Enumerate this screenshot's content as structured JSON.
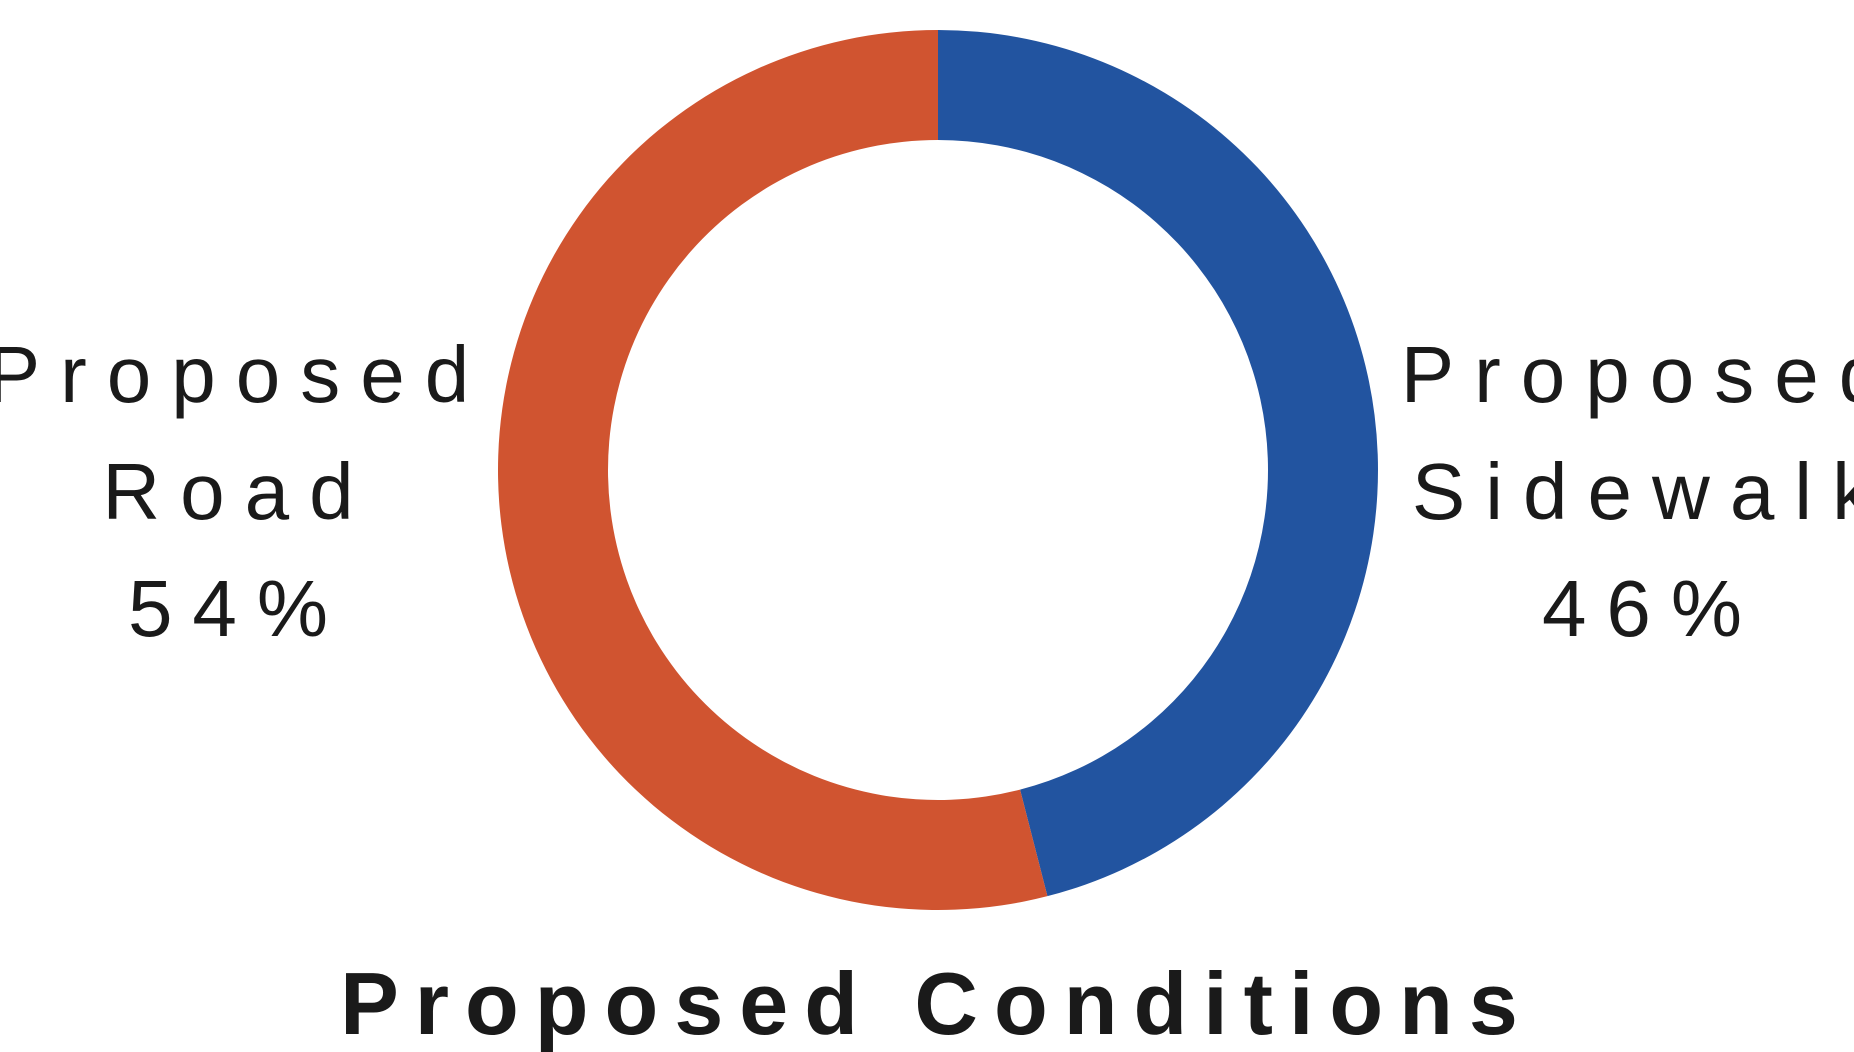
{
  "chart_data": {
    "type": "pie",
    "donut": true,
    "title": "Proposed Conditions",
    "slices": [
      {
        "label_lines": [
          "Proposed",
          "Sidewalk"
        ],
        "value": 46,
        "value_label": "46%",
        "color": "#2254a0"
      },
      {
        "label_lines": [
          "Proposed",
          "Road"
        ],
        "value": 54,
        "value_label": "54%",
        "color": "#d05430"
      }
    ],
    "start_angle_deg": 0,
    "direction": "clockwise",
    "legend": "none"
  }
}
